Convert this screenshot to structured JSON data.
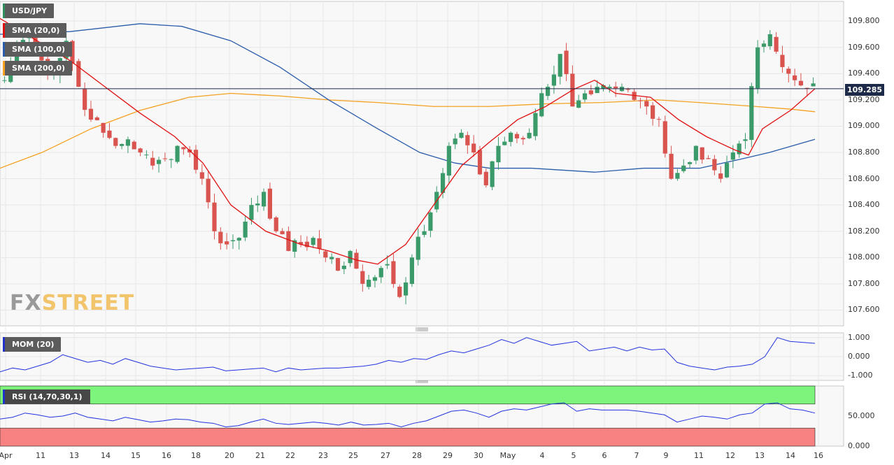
{
  "chart_data": [
    {
      "type": "candlestick",
      "symbol": "USD/JPY",
      "indicators": [
        {
          "name": "SMA (20,0)",
          "color": "#e01010"
        },
        {
          "name": "SMA (100,0)",
          "color": "#2a5caa"
        },
        {
          "name": "SMA (200,0)",
          "color": "#f5a020"
        }
      ],
      "ylim": [
        107.48,
        109.95
      ],
      "yticks": [
        "109.800",
        "109.600",
        "109.400",
        "109.200",
        "109.000",
        "108.800",
        "108.600",
        "108.400",
        "108.200",
        "108.000",
        "107.800",
        "107.600"
      ],
      "last_price": "109.285",
      "x_ticks": [
        "Apr",
        "11",
        "13",
        "14",
        "15",
        "16",
        "18",
        "20",
        "21",
        "22",
        "23",
        "25",
        "27",
        "28",
        "29",
        "30",
        "May",
        "4",
        "5",
        "6",
        "7",
        "9",
        "11",
        "12",
        "13",
        "14",
        "16"
      ],
      "close_path": [
        109.35,
        109.6,
        109.7,
        109.5,
        109.4,
        109.65,
        109.3,
        109.05,
        108.95,
        108.85,
        108.9,
        108.8,
        108.7,
        108.75,
        108.85,
        108.8,
        108.6,
        108.2,
        108.1,
        108.15,
        108.4,
        108.5,
        108.2,
        108.05,
        108.1,
        108.15,
        108.0,
        107.9,
        108.05,
        107.8,
        107.85,
        107.95,
        107.7,
        108.0,
        108.2,
        108.5,
        108.85,
        108.95,
        108.8,
        108.55,
        108.85,
        108.95,
        108.9,
        109.1,
        109.3,
        109.55,
        109.15,
        109.25,
        109.3,
        109.3,
        109.3,
        109.2,
        109.15,
        109.05,
        108.6,
        108.7,
        108.85,
        108.75,
        108.6,
        108.8,
        108.9,
        109.6,
        109.7,
        109.45,
        109.35,
        109.285
      ],
      "sma20": [
        [
          0,
          109.82
        ],
        [
          100,
          109.5
        ],
        [
          150,
          109.3
        ],
        [
          200,
          109.1
        ],
        [
          250,
          108.92
        ],
        [
          290,
          108.72
        ],
        [
          330,
          108.4
        ],
        [
          380,
          108.2
        ],
        [
          430,
          108.1
        ],
        [
          470,
          108.05
        ],
        [
          510,
          107.98
        ],
        [
          540,
          107.95
        ],
        [
          580,
          108.1
        ],
        [
          620,
          108.4
        ],
        [
          660,
          108.7
        ],
        [
          700,
          108.88
        ],
        [
          740,
          109.05
        ],
        [
          780,
          109.15
        ],
        [
          820,
          109.28
        ],
        [
          850,
          109.35
        ],
        [
          880,
          109.25
        ],
        [
          930,
          109.22
        ],
        [
          970,
          109.05
        ],
        [
          1010,
          108.92
        ],
        [
          1050,
          108.82
        ],
        [
          1070,
          108.78
        ],
        [
          1090,
          108.98
        ],
        [
          1130,
          109.12
        ],
        [
          1165,
          109.285
        ]
      ],
      "sma100": [
        [
          0,
          109.7
        ],
        [
          100,
          109.72
        ],
        [
          200,
          109.78
        ],
        [
          260,
          109.76
        ],
        [
          330,
          109.65
        ],
        [
          400,
          109.45
        ],
        [
          470,
          109.2
        ],
        [
          540,
          108.98
        ],
        [
          600,
          108.8
        ],
        [
          650,
          108.72
        ],
        [
          700,
          108.68
        ],
        [
          760,
          108.68
        ],
        [
          850,
          108.65
        ],
        [
          920,
          108.68
        ],
        [
          1000,
          108.68
        ],
        [
          1060,
          108.75
        ],
        [
          1100,
          108.8
        ],
        [
          1165,
          108.9
        ]
      ],
      "sma200": [
        [
          0,
          108.68
        ],
        [
          60,
          108.8
        ],
        [
          130,
          108.98
        ],
        [
          200,
          109.12
        ],
        [
          270,
          109.22
        ],
        [
          330,
          109.25
        ],
        [
          400,
          109.23
        ],
        [
          470,
          109.2
        ],
        [
          540,
          109.18
        ],
        [
          620,
          109.15
        ],
        [
          700,
          109.15
        ],
        [
          780,
          109.17
        ],
        [
          860,
          109.18
        ],
        [
          940,
          109.2
        ],
        [
          1000,
          109.18
        ],
        [
          1080,
          109.15
        ],
        [
          1130,
          109.13
        ],
        [
          1165,
          109.11
        ]
      ]
    },
    {
      "type": "line",
      "name": "MOM (20)",
      "ylim": [
        -1.25,
        1.25
      ],
      "yticks": [
        "1.000",
        "0.000",
        "-1.000"
      ],
      "values": [
        -0.8,
        -0.6,
        -0.7,
        -0.5,
        -0.3,
        0.1,
        -0.1,
        -0.3,
        -0.2,
        -0.4,
        -0.1,
        -0.3,
        -0.5,
        -0.6,
        -0.7,
        -0.65,
        -0.6,
        -0.55,
        -0.75,
        -0.7,
        -0.65,
        -0.6,
        -0.8,
        -0.6,
        -0.7,
        -0.65,
        -0.6,
        -0.6,
        -0.55,
        -0.5,
        -0.4,
        -0.2,
        -0.3,
        -0.1,
        -0.15,
        0.1,
        0.3,
        0.2,
        0.4,
        0.6,
        0.9,
        0.7,
        1.0,
        0.8,
        0.6,
        0.7,
        0.8,
        0.3,
        0.4,
        0.5,
        0.3,
        0.5,
        0.35,
        0.4,
        -0.3,
        -0.5,
        -0.6,
        -0.7,
        -0.55,
        -0.5,
        -0.4,
        0.0,
        1.0,
        0.8,
        0.75,
        0.7
      ]
    },
    {
      "type": "line",
      "name": "RSI (14,70,30,1)",
      "ylim": [
        0,
        100
      ],
      "yticks": [
        "50.000",
        "0.000"
      ],
      "levels": [
        30,
        70
      ],
      "values": [
        45,
        48,
        55,
        52,
        48,
        50,
        55,
        48,
        45,
        42,
        48,
        44,
        40,
        42,
        45,
        44,
        40,
        38,
        32,
        34,
        40,
        45,
        38,
        36,
        38,
        40,
        38,
        35,
        40,
        35,
        36,
        38,
        32,
        38,
        42,
        50,
        58,
        60,
        55,
        48,
        58,
        62,
        60,
        65,
        70,
        72,
        58,
        62,
        60,
        60,
        60,
        58,
        55,
        52,
        40,
        45,
        50,
        48,
        45,
        52,
        55,
        70,
        72,
        62,
        60,
        55
      ]
    }
  ]
}
